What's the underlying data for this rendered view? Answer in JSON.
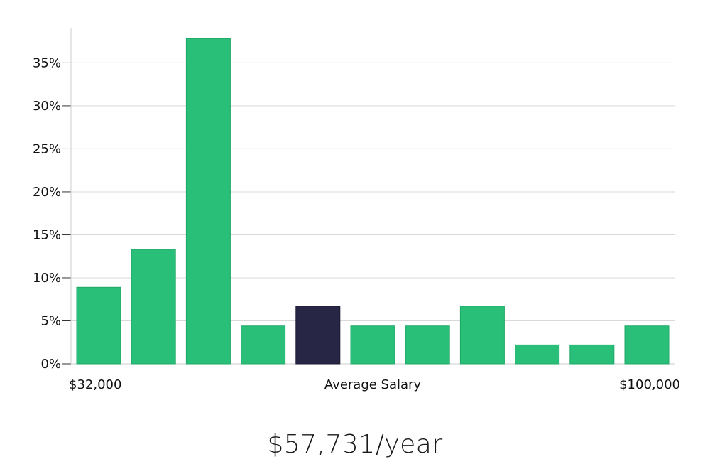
{
  "chart_data": {
    "type": "bar",
    "title": "",
    "xlabel": "Average Salary",
    "ylabel": "",
    "x_min_label": "$32,000",
    "x_max_label": "$100,000",
    "ylim": [
      0,
      39
    ],
    "yticks": [
      0,
      5,
      10,
      15,
      20,
      25,
      30,
      35
    ],
    "ytick_labels": [
      "0%",
      "5%",
      "10%",
      "15%",
      "20%",
      "25%",
      "30%",
      "35%"
    ],
    "values": [
      8.9,
      13.3,
      37.8,
      4.4,
      6.7,
      4.4,
      4.4,
      6.7,
      2.2,
      2.2,
      4.4
    ],
    "highlight_index": 4,
    "grid": true
  },
  "colors": {
    "bar": "#2abf79",
    "bar_border": "#1fa866",
    "highlight": "#282645",
    "grid": "#d9d9d9",
    "axis": "#cccccc"
  },
  "salary_text": "$57,731/year"
}
